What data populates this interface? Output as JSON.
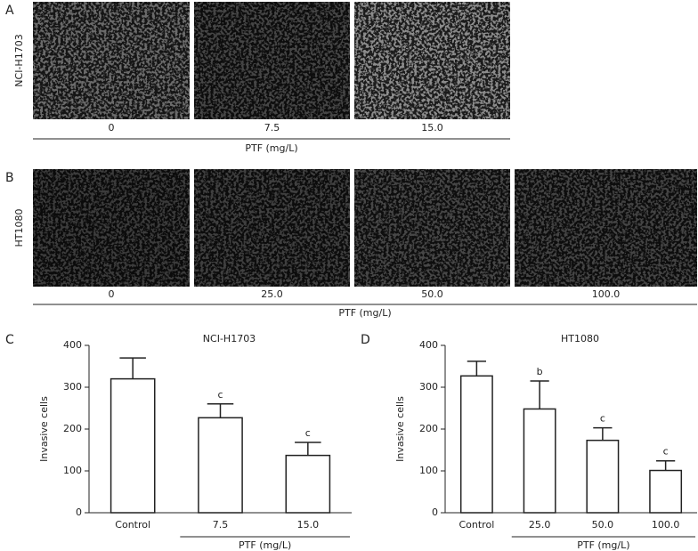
{
  "panels": [
    {
      "letter": "A",
      "cell_line": "NCI-H1703",
      "doses": [
        "0",
        "7.5",
        "15.0"
      ],
      "axis_label": "PTF (mg/L)"
    },
    {
      "letter": "B",
      "cell_line": "HT1080",
      "doses": [
        "0",
        "25.0",
        "50.0",
        "100.0"
      ],
      "axis_label": "PTF (mg/L)"
    }
  ],
  "chart_data": [
    {
      "type": "bar",
      "panel": "C",
      "title": "NCI-H1703",
      "categories": [
        "Control",
        "7.5",
        "15.0"
      ],
      "values": [
        320,
        227,
        137
      ],
      "errors": [
        50,
        33,
        31
      ],
      "significance": [
        null,
        "c",
        "c"
      ],
      "ylabel": "Invasive cells",
      "xlabel": "PTF (mg/L)",
      "ylim": [
        0,
        400
      ],
      "yticks": [
        0,
        100,
        200,
        300,
        400
      ],
      "color": "#ffffff"
    },
    {
      "type": "bar",
      "panel": "D",
      "title": "HT1080",
      "categories": [
        "Control",
        "25.0",
        "50.0",
        "100.0"
      ],
      "values": [
        327,
        248,
        173,
        101
      ],
      "errors": [
        35,
        67,
        30,
        23
      ],
      "significance": [
        null,
        "b",
        "c",
        "c"
      ],
      "ylabel": "Invasive cells",
      "xlabel": "PTF (mg/L)",
      "ylim": [
        0,
        400
      ],
      "yticks": [
        0,
        100,
        200,
        300,
        400
      ],
      "color": "#ffffff"
    }
  ]
}
